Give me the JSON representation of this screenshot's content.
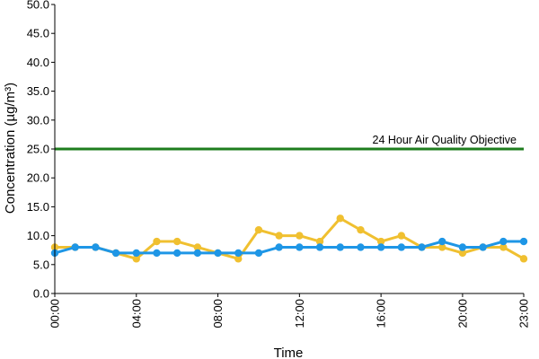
{
  "chart_data": {
    "type": "line",
    "title": "",
    "xlabel": "Time",
    "ylabel": "Concentration (µg/m³)",
    "ylim": [
      0,
      50
    ],
    "yticks": [
      "0.0",
      "5.0",
      "10.0",
      "15.0",
      "20.0",
      "25.0",
      "30.0",
      "35.0",
      "40.0",
      "45.0",
      "50.0"
    ],
    "xticks": [
      "00:00",
      "04:00",
      "08:00",
      "12:00",
      "16:00",
      "20:00",
      "23:00"
    ],
    "x": [
      "00:00",
      "01:00",
      "02:00",
      "03:00",
      "04:00",
      "05:00",
      "06:00",
      "07:00",
      "08:00",
      "09:00",
      "10:00",
      "11:00",
      "12:00",
      "13:00",
      "14:00",
      "15:00",
      "16:00",
      "17:00",
      "18:00",
      "19:00",
      "20:00",
      "21:00",
      "22:00",
      "23:00"
    ],
    "grid": false,
    "legend": "none",
    "series": [
      {
        "color": "#f0c030",
        "values": [
          8,
          8,
          8,
          7,
          6,
          9,
          9,
          8,
          7,
          6,
          11,
          10,
          10,
          9,
          13,
          11,
          9,
          10,
          8,
          8,
          7,
          8,
          8,
          6
        ]
      },
      {
        "color": "#1e96e6",
        "values": [
          7,
          8,
          8,
          7,
          7,
          7,
          7,
          7,
          7,
          7,
          7,
          8,
          8,
          8,
          8,
          8,
          8,
          8,
          8,
          9,
          8,
          8,
          9,
          9
        ]
      }
    ],
    "reference_line": {
      "value": 25,
      "label": "24 Hour Air Quality Objective",
      "color": "#1e7d1e"
    }
  }
}
